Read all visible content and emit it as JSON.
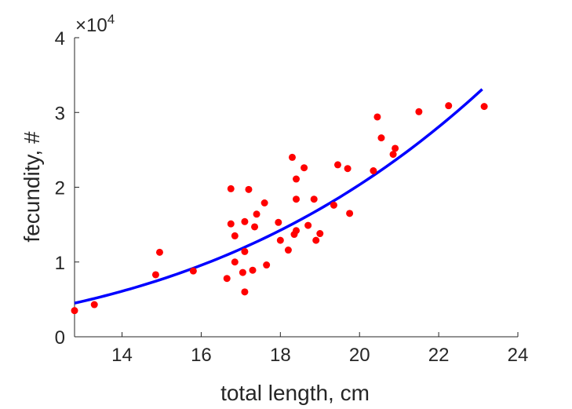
{
  "chart_data": {
    "type": "scatter",
    "xlabel": "total length, cm",
    "ylabel": "fecundity, #",
    "xlim": [
      12.8,
      24
    ],
    "ylim": [
      0,
      40000
    ],
    "xticks": [
      14,
      16,
      18,
      20,
      22,
      24
    ],
    "yticks": [
      0,
      1,
      2,
      3,
      4
    ],
    "ytick_labels": [
      "0",
      "1",
      "2",
      "3",
      "4"
    ],
    "y_multiplier": "×10",
    "y_multiplier_exp": "4",
    "grid": false,
    "series": [
      {
        "type": "scatter",
        "color": "#ff0000",
        "points": [
          [
            12.8,
            3500
          ],
          [
            13.3,
            4300
          ],
          [
            14.85,
            8300
          ],
          [
            14.95,
            11300
          ],
          [
            15.8,
            8800
          ],
          [
            16.65,
            7800
          ],
          [
            16.75,
            19800
          ],
          [
            16.75,
            15100
          ],
          [
            16.85,
            13500
          ],
          [
            16.85,
            10000
          ],
          [
            17.05,
            8600
          ],
          [
            17.1,
            15400
          ],
          [
            17.1,
            11400
          ],
          [
            17.1,
            6000
          ],
          [
            17.2,
            19700
          ],
          [
            17.3,
            8900
          ],
          [
            17.35,
            14700
          ],
          [
            17.4,
            16400
          ],
          [
            17.6,
            17900
          ],
          [
            17.65,
            9600
          ],
          [
            17.95,
            15300
          ],
          [
            18.0,
            12900
          ],
          [
            18.2,
            11600
          ],
          [
            18.3,
            24000
          ],
          [
            18.35,
            13700
          ],
          [
            18.4,
            21100
          ],
          [
            18.4,
            18400
          ],
          [
            18.4,
            14200
          ],
          [
            18.6,
            22600
          ],
          [
            18.7,
            14900
          ],
          [
            18.85,
            18400
          ],
          [
            18.9,
            12900
          ],
          [
            19.0,
            13800
          ],
          [
            19.35,
            17600
          ],
          [
            19.45,
            23000
          ],
          [
            19.7,
            22500
          ],
          [
            19.75,
            16500
          ],
          [
            20.35,
            22200
          ],
          [
            20.45,
            29400
          ],
          [
            20.55,
            26600
          ],
          [
            20.85,
            24400
          ],
          [
            20.9,
            25200
          ],
          [
            21.5,
            30100
          ],
          [
            22.25,
            30900
          ],
          [
            23.15,
            30800
          ]
        ]
      },
      {
        "type": "line",
        "color": "#0000ff",
        "fit": {
          "form": "power",
          "a": 4500,
          "x0": 12.8,
          "b": 3.38
        },
        "x_range": [
          12.8,
          23.1
        ]
      }
    ]
  }
}
